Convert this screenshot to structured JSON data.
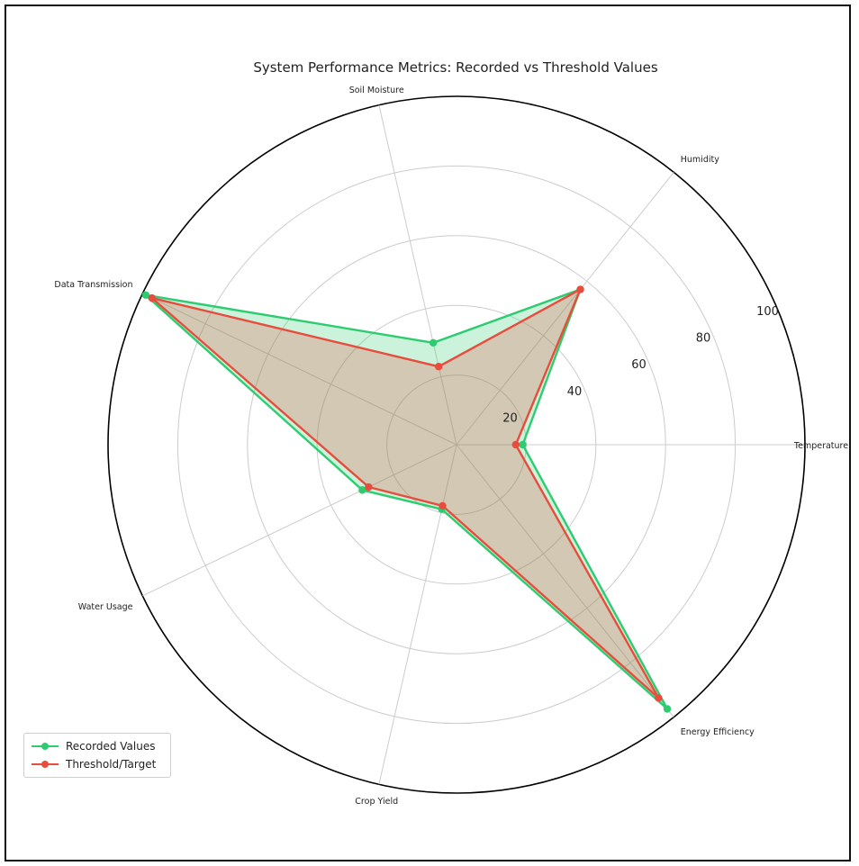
{
  "chart_data": {
    "type": "radar",
    "title": "System Performance Metrics: Recorded vs Threshold Values",
    "categories": [
      "Temperature",
      "Humidity",
      "Soil Moisture",
      "Data Transmission",
      "Water Usage",
      "Crop Yield",
      "Energy Efficiency"
    ],
    "r_ticks": [
      "20",
      "40",
      "60",
      "80",
      "100"
    ],
    "rlim": [
      0,
      100
    ],
    "grid": true,
    "legend_position": "lower-left",
    "series": [
      {
        "name": "Recorded Values",
        "values": [
          19,
          57,
          30,
          99,
          30,
          19,
          97
        ],
        "color": "#2ecc71"
      },
      {
        "name": "Threshold/Target",
        "values": [
          17,
          57,
          23,
          97,
          28,
          18,
          93
        ],
        "color": "#e74c3c"
      }
    ]
  }
}
